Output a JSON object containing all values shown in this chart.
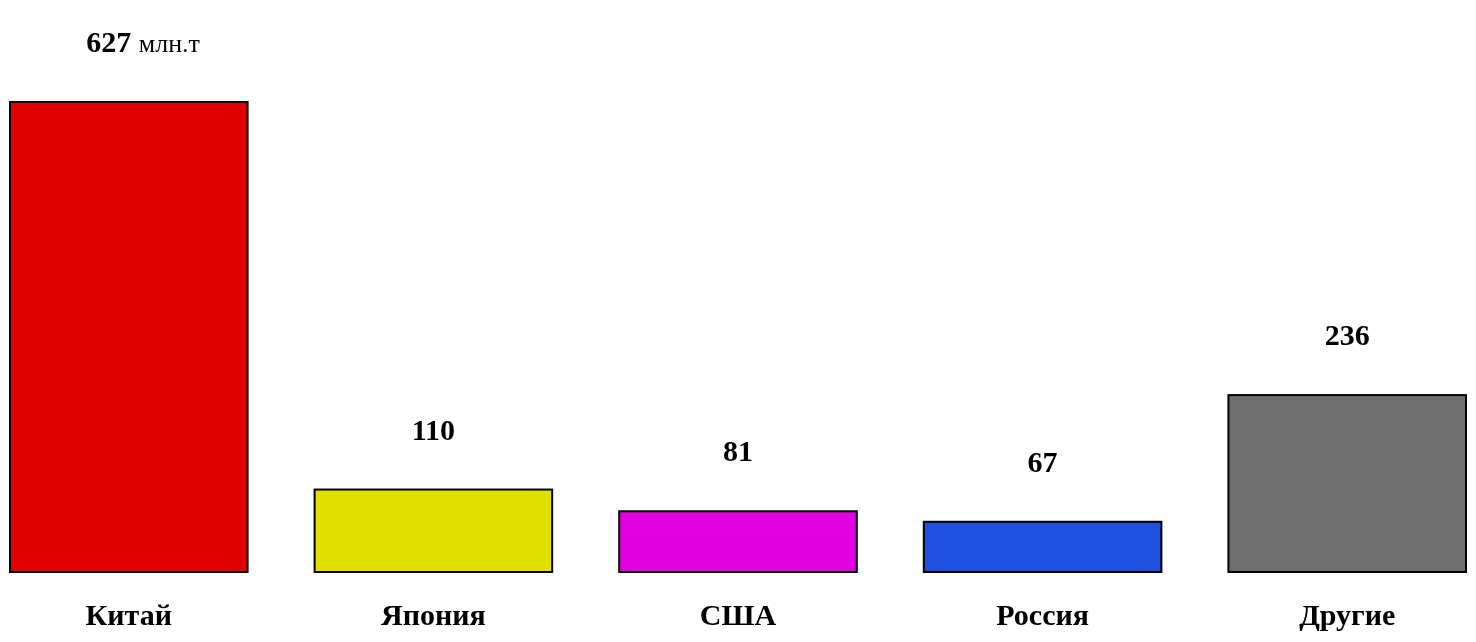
{
  "chart_data": {
    "type": "bar",
    "categories": [
      "Китай",
      "Япония",
      "США",
      "Россия",
      "Другие"
    ],
    "values": [
      627,
      110,
      81,
      67,
      236
    ],
    "colors": [
      "#e00000",
      "#e0e000",
      "#e000e0",
      "#2050e0",
      "#6e6e6e"
    ],
    "data_labels": true,
    "annotations": [
      "млн.т"
    ]
  }
}
